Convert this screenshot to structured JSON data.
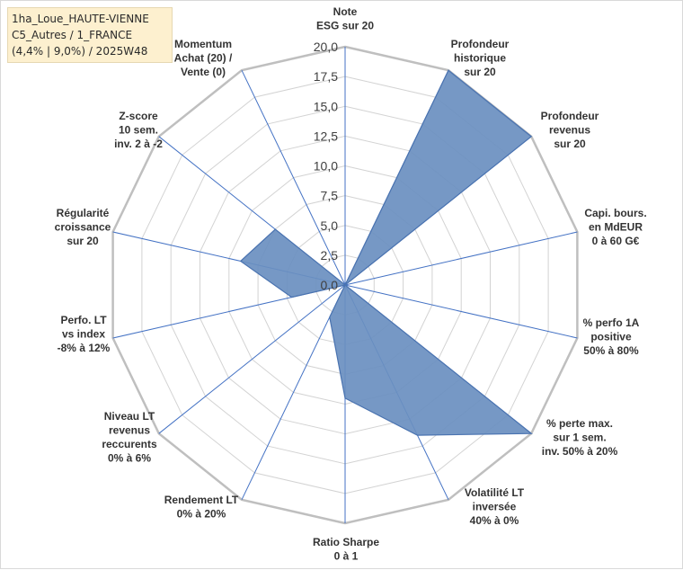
{
  "title_lines": [
    "1ha_Loue_HAUTE-VIENNE",
    "C5_Autres / 1_FRANCE",
    "(4,4% | 9,0%) / 2025W48"
  ],
  "colors": {
    "fill": "#6a8fc0",
    "stroke": "#4a73b0",
    "grid": "#d3d3d3",
    "spoke": "#4472c4",
    "title_bg": "#fdf0cf"
  },
  "chart_data": {
    "type": "radar",
    "range": [
      0,
      20
    ],
    "tick_step": 2.5,
    "grid": true,
    "tick_labels": [
      "0,0",
      "2,5",
      "5,0",
      "7,5",
      "10,0",
      "12,5",
      "15,0",
      "17,5",
      "20,0"
    ],
    "axes": [
      {
        "label": [
          "Note",
          "ESG sur 20"
        ],
        "value": 0
      },
      {
        "label": [
          "Profondeur",
          "historique",
          "sur 20"
        ],
        "value": 20
      },
      {
        "label": [
          "Profondeur",
          "revenus",
          "sur 20"
        ],
        "value": 20
      },
      {
        "label": [
          "Capi. bours.",
          "en MdEUR",
          "0 à 60 G€"
        ],
        "value": 0
      },
      {
        "label": [
          "% perfo 1A",
          "positive",
          "50% à 80%"
        ],
        "value": 0
      },
      {
        "label": [
          "% perte max.",
          "sur 1 sem.",
          "inv. 50% à 20%"
        ],
        "value": 20
      },
      {
        "label": [
          "Volatilité LT",
          "inversée",
          "40% à 0%"
        ],
        "value": 14
      },
      {
        "label": [
          "Ratio Sharpe",
          "0 à 1"
        ],
        "value": 9.5
      },
      {
        "label": [
          "Rendement LT",
          "0% à 20%"
        ],
        "value": 3
      },
      {
        "label": [
          "Niveau LT",
          "revenus",
          "reccurents",
          "0% à 6%"
        ],
        "value": 0
      },
      {
        "label": [
          "Perfo. LT",
          "vs index",
          "-8% à 12%"
        ],
        "value": 4.6
      },
      {
        "label": [
          "Régularité",
          "croissance",
          "sur 20"
        ],
        "value": 9
      },
      {
        "label": [
          "Z-score",
          "10 sem.",
          "inv. 2 à -2"
        ],
        "value": 7.5
      },
      {
        "label": [
          "Momentum",
          "Achat (20) /",
          "Vente (0)"
        ],
        "value": 0
      }
    ]
  }
}
